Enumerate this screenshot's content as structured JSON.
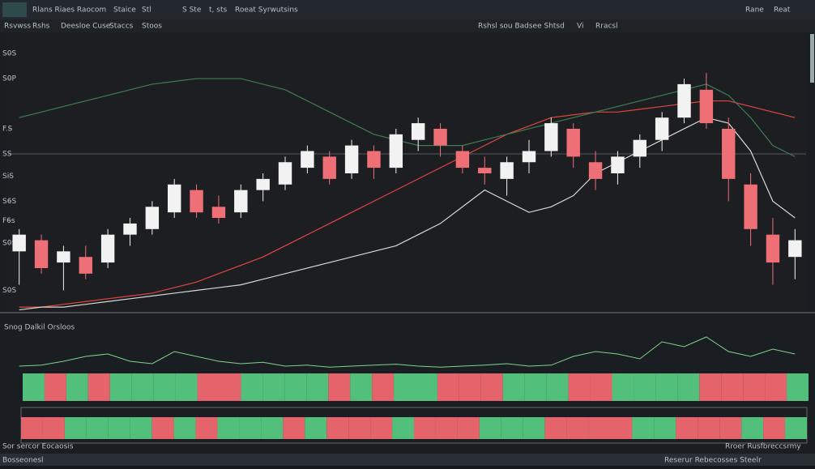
{
  "toolbar": {
    "left": [
      "Rlans Riaes Raocom",
      "Staice",
      "Stl",
      "S Ste",
      "t, sts",
      "Roeat Syrwutsins"
    ],
    "right": [
      "Rane",
      "Reat"
    ]
  },
  "subbar": {
    "left": [
      "Rsvwss",
      "Rshs",
      "Deesloe Cuse",
      "Staccs",
      "Stoos"
    ],
    "center": [
      "Rshsl sou Badsee Shtsd",
      "Vi",
      "Rracsl"
    ]
  },
  "chart_data": {
    "type": "candlestick",
    "up_color": "#f2f2f2",
    "down_color": "#ef6f77",
    "ylim": [
      0,
      100
    ],
    "yticks": [
      {
        "value": 93,
        "label": "S0S"
      },
      {
        "value": 84,
        "label": "S0P"
      },
      {
        "value": 66,
        "label": "F.S"
      },
      {
        "value": 57,
        "label": "SS"
      },
      {
        "value": 49,
        "label": "SiS"
      },
      {
        "value": 40,
        "label": "S6S"
      },
      {
        "value": 33,
        "label": "F6s"
      },
      {
        "value": 25,
        "label": "S0S"
      },
      {
        "value": 8,
        "label": "S0S"
      }
    ],
    "candles": [
      [
        22,
        30,
        10,
        28
      ],
      [
        26,
        28,
        14,
        16
      ],
      [
        18,
        24,
        8,
        22
      ],
      [
        20,
        24,
        12,
        14
      ],
      [
        18,
        30,
        16,
        28
      ],
      [
        28,
        34,
        24,
        32
      ],
      [
        30,
        40,
        28,
        38
      ],
      [
        36,
        48,
        34,
        46
      ],
      [
        44,
        46,
        34,
        36
      ],
      [
        38,
        42,
        32,
        34
      ],
      [
        36,
        46,
        34,
        44
      ],
      [
        44,
        50,
        40,
        48
      ],
      [
        46,
        56,
        44,
        54
      ],
      [
        52,
        60,
        50,
        58
      ],
      [
        56,
        58,
        46,
        48
      ],
      [
        50,
        62,
        48,
        60
      ],
      [
        58,
        60,
        48,
        52
      ],
      [
        52,
        66,
        50,
        64
      ],
      [
        62,
        70,
        58,
        68
      ],
      [
        66,
        68,
        56,
        60
      ],
      [
        58,
        60,
        50,
        52
      ],
      [
        52,
        56,
        46,
        50
      ],
      [
        48,
        56,
        42,
        54
      ],
      [
        54,
        62,
        50,
        58
      ],
      [
        58,
        70,
        56,
        68
      ],
      [
        66,
        68,
        52,
        56
      ],
      [
        54,
        58,
        44,
        48
      ],
      [
        50,
        58,
        46,
        56
      ],
      [
        56,
        64,
        52,
        62
      ],
      [
        62,
        72,
        58,
        70
      ],
      [
        70,
        84,
        68,
        82
      ],
      [
        80,
        86,
        66,
        68
      ],
      [
        66,
        70,
        40,
        48
      ],
      [
        46,
        50,
        24,
        30
      ],
      [
        28,
        34,
        10,
        18
      ],
      [
        20,
        30,
        12,
        26
      ]
    ],
    "lines": [
      {
        "color": "#e0463f",
        "values": [
          2,
          2,
          3,
          4,
          5,
          6,
          7,
          9,
          11,
          14,
          17,
          20,
          24,
          28,
          32,
          36,
          40,
          44,
          48,
          52,
          56,
          60,
          64,
          67,
          70,
          71,
          72,
          72,
          73,
          74,
          75,
          76,
          76,
          74,
          72,
          70
        ]
      },
      {
        "color": "#d8d8d8",
        "values": [
          1,
          2,
          2,
          3,
          4,
          5,
          6,
          7,
          8,
          9,
          10,
          12,
          14,
          16,
          18,
          20,
          22,
          24,
          28,
          32,
          38,
          44,
          40,
          36,
          38,
          42,
          50,
          54,
          58,
          62,
          66,
          70,
          68,
          58,
          40,
          34
        ]
      },
      {
        "color": "#3e7d52",
        "values": [
          70,
          72,
          74,
          76,
          78,
          80,
          82,
          83,
          84,
          84,
          84,
          82,
          80,
          76,
          72,
          68,
          64,
          62,
          60,
          60,
          60,
          62,
          64,
          66,
          68,
          70,
          72,
          74,
          76,
          78,
          80,
          82,
          78,
          70,
          60,
          56
        ]
      }
    ],
    "indicator": {
      "label": "Snog Dalkil Orsloos",
      "color": "#7fd38a",
      "ylim": [
        0,
        100
      ],
      "values": [
        10,
        12,
        20,
        30,
        35,
        20,
        15,
        40,
        30,
        20,
        15,
        18,
        10,
        12,
        8,
        10,
        12,
        14,
        10,
        8,
        10,
        12,
        15,
        10,
        12,
        30,
        40,
        35,
        25,
        60,
        50,
        70,
        40,
        30,
        45,
        35
      ]
    }
  },
  "footer": {
    "left": "Sor sercor Eocaosis",
    "right": "Rroer Rusfbreccsrmy"
  },
  "status_bar": {
    "left": "Bosseonesl",
    "right": "Reserur Rebecosses Steelr"
  }
}
